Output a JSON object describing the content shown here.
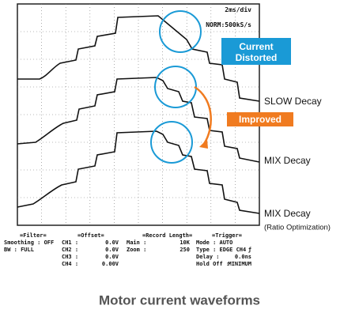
{
  "screen": {
    "timebase": "2ms/div",
    "sampling": "NORM:500kS/s"
  },
  "annotations": {
    "distorted": [
      "Current",
      "Distorted"
    ],
    "improved": "Improved"
  },
  "traces": [
    {
      "label": "SLOW Decay"
    },
    {
      "label": "MIX Decay"
    },
    {
      "label": "MIX Decay",
      "note": "(Ratio Optimization)"
    }
  ],
  "status": {
    "filter": {
      "heading": "=Filter=",
      "lines": [
        [
          "Smoothing : OFF",
          ""
        ],
        [
          "BW : FULL",
          ""
        ]
      ]
    },
    "offset": {
      "heading": "=Offset=",
      "lines": [
        [
          "CH1 :",
          "0.0V"
        ],
        [
          "CH2 :",
          "0.0V"
        ],
        [
          "CH3 :",
          "0.0V"
        ],
        [
          "CH4 :",
          "0.00V"
        ]
      ]
    },
    "record": {
      "heading": "=Record Length=",
      "lines": [
        [
          "Main :",
          "10K"
        ],
        [
          "Zoom :",
          "250"
        ]
      ]
    },
    "trigger": {
      "heading": "=Trigger=",
      "lines": [
        [
          "Mode : AUTO",
          ""
        ],
        [
          "Type : EDGE CH4",
          "ƒ"
        ],
        [
          "Delay :",
          "0.0ns"
        ],
        [
          "Hold Off :",
          "MINIMUM"
        ]
      ]
    }
  },
  "caption": "Motor current waveforms"
}
